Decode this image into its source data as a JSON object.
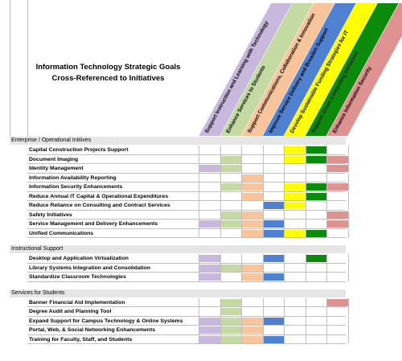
{
  "title_line1": "Information Technology Strategic Goals",
  "title_line2": "Cross-Referenced to Initiatives",
  "goals": [
    {
      "label": "Support Instruction and Learning with Technology",
      "color": "#c9b8dd"
    },
    {
      "label": "Enhance Services to Students",
      "color": "#c3dba2"
    },
    {
      "label": "Support Communications, Collaboration & Innovation",
      "color": "#f8c49b"
    },
    {
      "label": "Improve Service Delivery and Broaden Support",
      "color": "#4f81d0"
    },
    {
      "label": "Develop Sustainable Funding Strategies for IT",
      "color": "#ffff00"
    },
    {
      "label": "Support Green Computing Initiatives",
      "color": "#0b8a0b"
    },
    {
      "label": "Enhance Information Security",
      "color": "#df9390"
    }
  ],
  "sections": [
    {
      "name": "Enterprise / Operational Initiives",
      "rows": [
        {
          "label": "Capital Construction Projects Support",
          "marks": [
            0,
            0,
            0,
            0,
            1,
            1,
            0
          ]
        },
        {
          "label": "Document Imaging",
          "marks": [
            0,
            1,
            0,
            0,
            1,
            1,
            1
          ]
        },
        {
          "label": "Identity Management",
          "marks": [
            1,
            1,
            0,
            0,
            0,
            0,
            1
          ]
        },
        {
          "label": "Information Availability Reporting",
          "marks": [
            0,
            0,
            1,
            0,
            0,
            0,
            0
          ]
        },
        {
          "label": "Information Security Enhancements",
          "marks": [
            0,
            1,
            1,
            0,
            1,
            1,
            1
          ]
        },
        {
          "label": "Reduce Annual IT Capital & Operational Expenditures",
          "marks": [
            0,
            0,
            1,
            0,
            1,
            1,
            0
          ]
        },
        {
          "label": "Reduce Reliance on Consulting and Contract Services",
          "marks": [
            0,
            0,
            0,
            1,
            1,
            0,
            0
          ]
        },
        {
          "label": "Safety Initiatives",
          "marks": [
            0,
            1,
            1,
            0,
            0,
            0,
            1
          ]
        },
        {
          "label": "Service Management and Delivery Enhancements",
          "marks": [
            1,
            1,
            1,
            1,
            0,
            0,
            1
          ]
        },
        {
          "label": "Unified Communications",
          "marks": [
            0,
            0,
            1,
            1,
            1,
            1,
            0
          ]
        }
      ]
    },
    {
      "name": "Instructional Support",
      "rows": [
        {
          "label": "Desktop and Application Virtualization",
          "marks": [
            1,
            0,
            0,
            1,
            0,
            1,
            0
          ]
        },
        {
          "label": "Library Systems Integration and Consolidation",
          "marks": [
            1,
            1,
            1,
            0,
            0,
            0,
            0
          ]
        },
        {
          "label": "Standardize Classroom Technologies",
          "marks": [
            1,
            0,
            1,
            1,
            0,
            0,
            0
          ]
        }
      ]
    },
    {
      "name": "Services for Students",
      "rows": [
        {
          "label": "Banner Financial Aid Implementation",
          "marks": [
            0,
            1,
            0,
            0,
            0,
            0,
            1
          ]
        },
        {
          "label": "Degree Audit and Planning Tool",
          "marks": [
            0,
            1,
            0,
            0,
            0,
            0,
            0
          ]
        },
        {
          "label": "Expand Support for Campus Technology & Online Systems",
          "marks": [
            1,
            1,
            1,
            1,
            0,
            0,
            0
          ]
        },
        {
          "label": "Portal, Web, & Social Networking Enhancements",
          "marks": [
            1,
            1,
            1,
            0,
            0,
            0,
            0
          ]
        },
        {
          "label": "Training for Faculty, Staff, and Students",
          "marks": [
            1,
            1,
            1,
            1,
            0,
            0,
            0
          ]
        }
      ]
    }
  ]
}
